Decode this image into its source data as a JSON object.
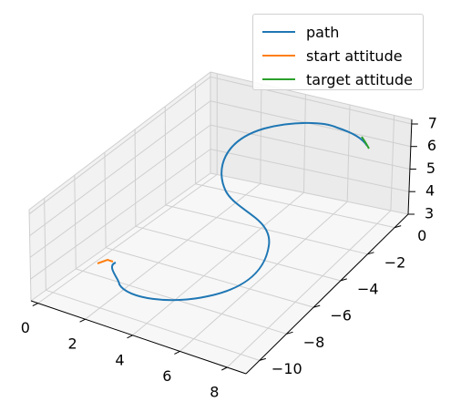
{
  "chart_data": {
    "type": "line",
    "projection": "3d",
    "grid": true,
    "legend_position": "top-right",
    "axes": {
      "x": {
        "ticks": [
          0,
          2,
          4,
          6,
          8
        ],
        "range": [
          -0.3,
          8.8
        ]
      },
      "y": {
        "ticks": [
          0,
          -2,
          -4,
          -6,
          -8,
          -10
        ],
        "range": [
          -11,
          1
        ]
      },
      "z": {
        "ticks": [
          3,
          4,
          5,
          6,
          7
        ],
        "range": [
          3,
          7.2
        ]
      }
    },
    "series": [
      {
        "name": "path",
        "color": "#1f77b4"
      },
      {
        "name": "start attitude",
        "color": "#ff7f0e"
      },
      {
        "name": "target attitude",
        "color": "#2ca02c"
      }
    ]
  }
}
